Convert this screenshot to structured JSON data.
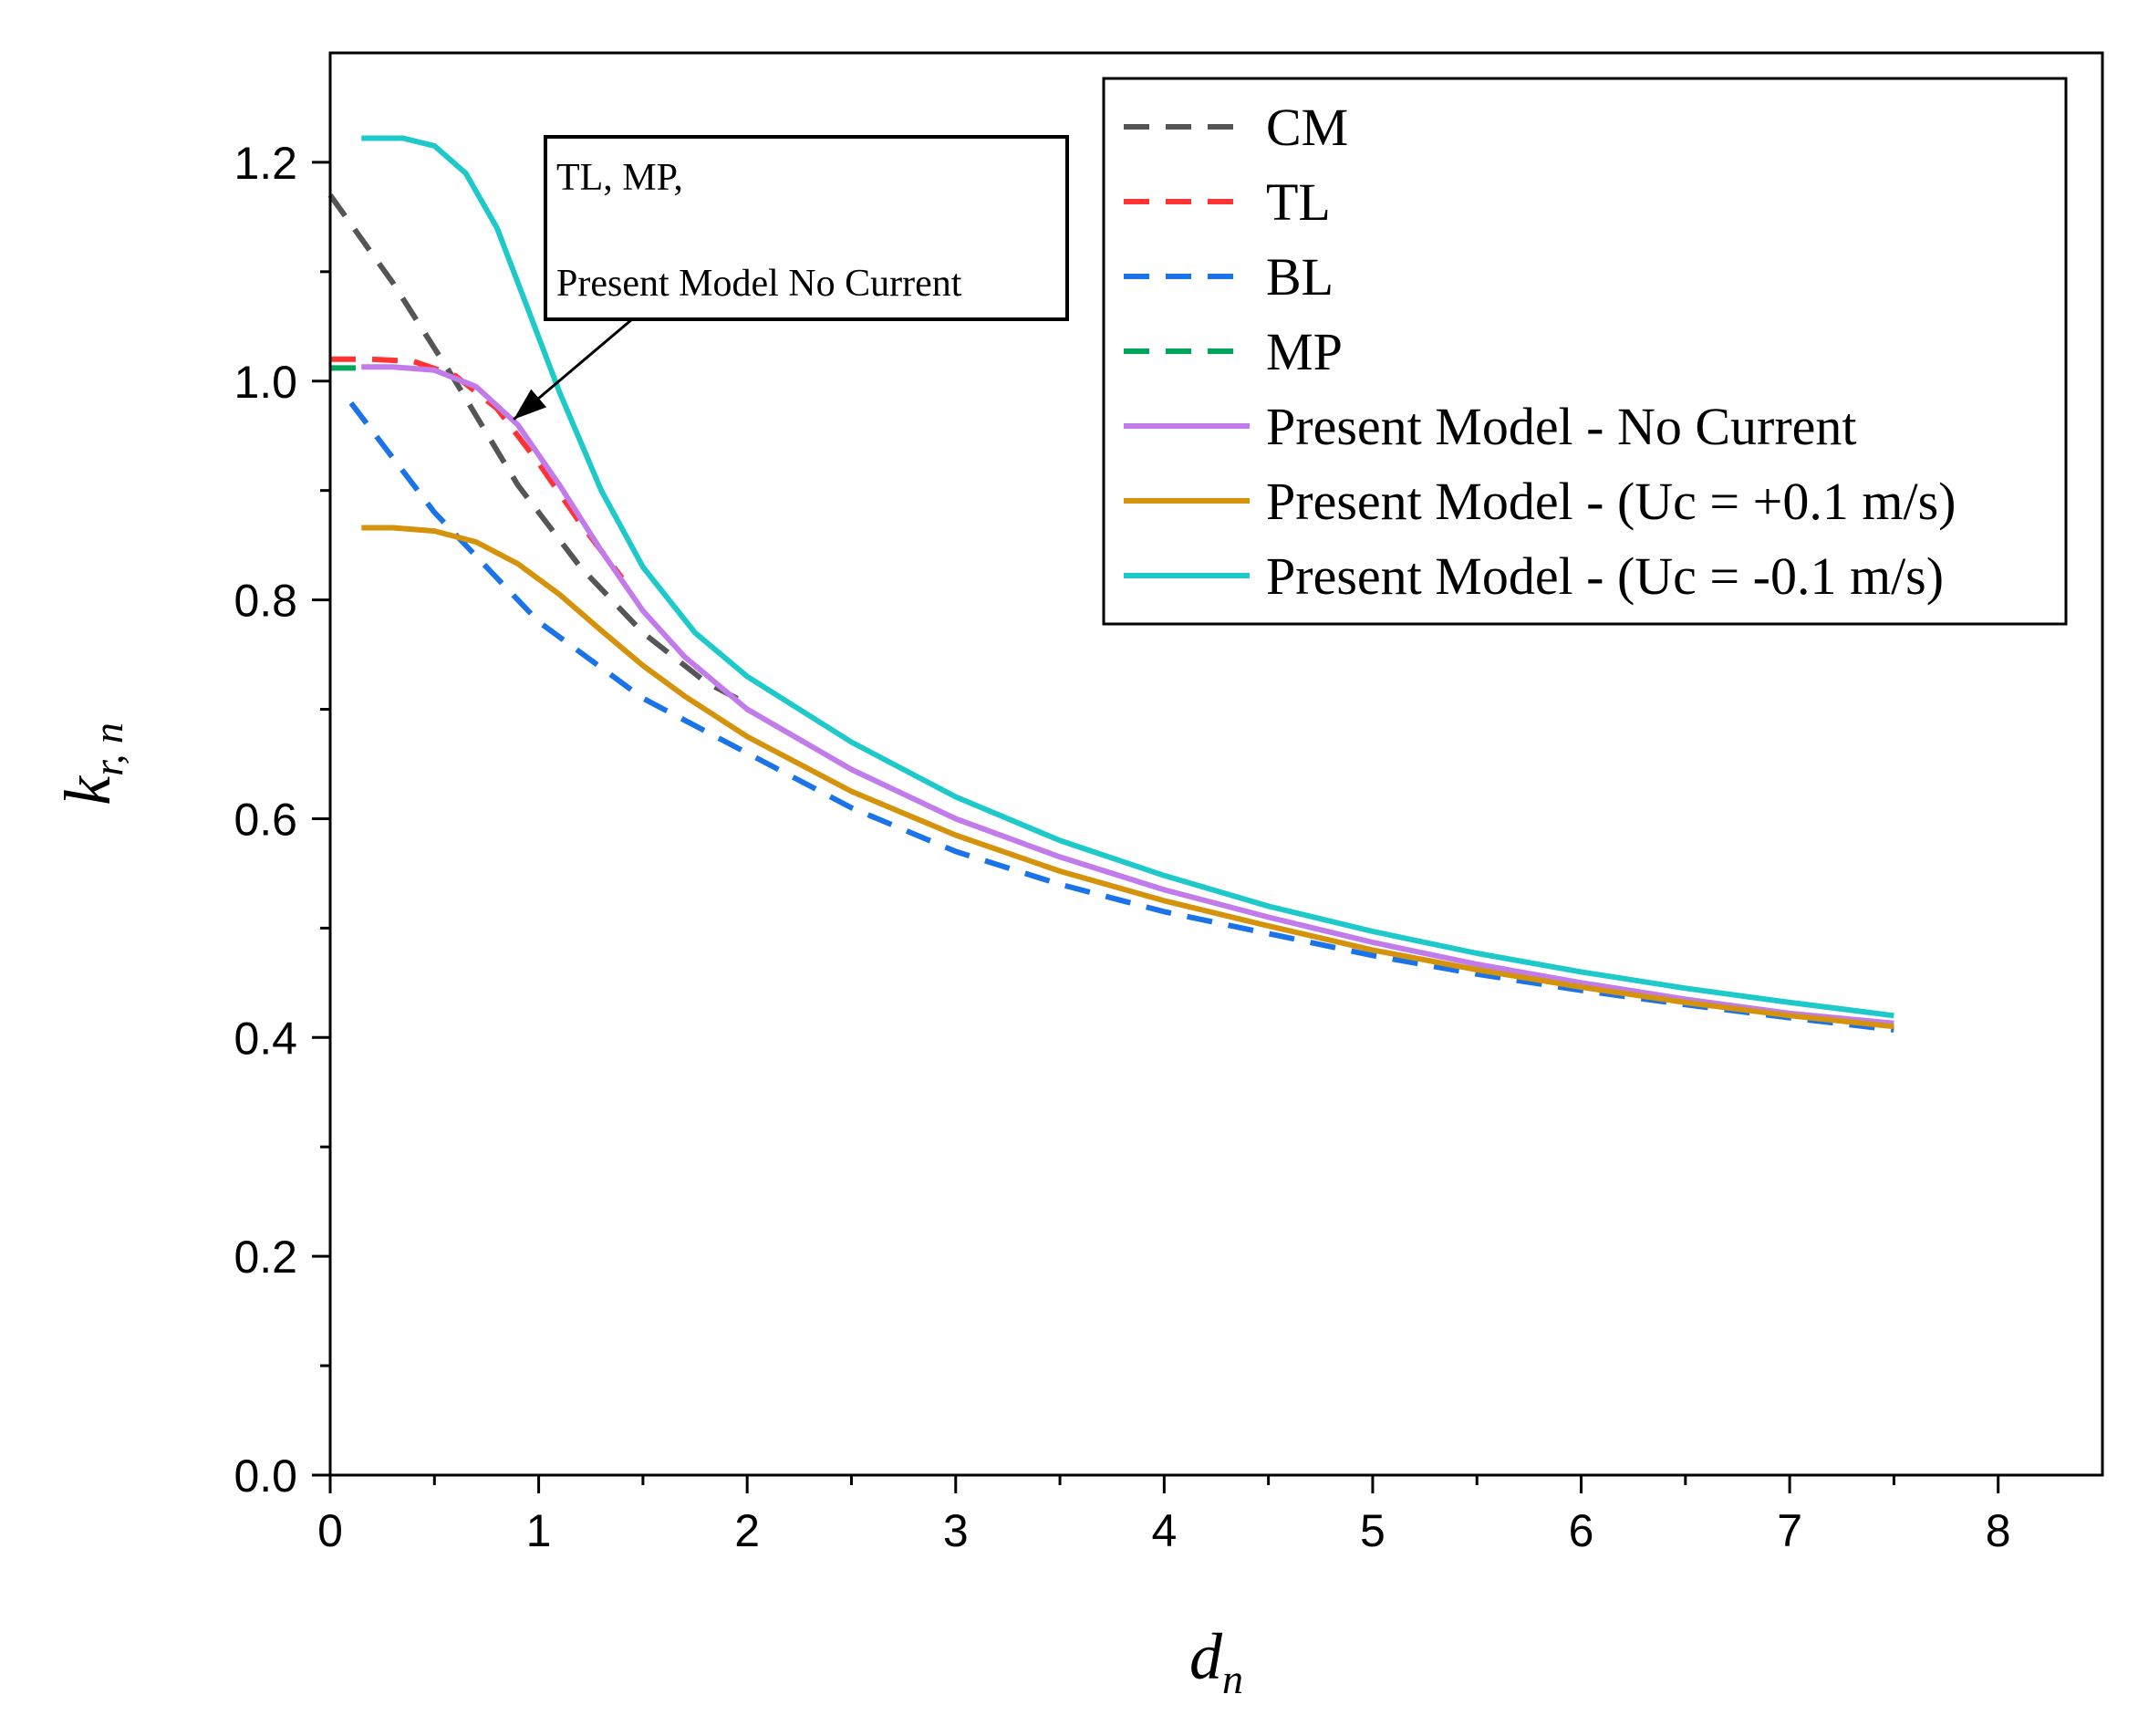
{
  "chart_data": {
    "type": "line",
    "title": "",
    "xlabel": {
      "main": "d",
      "sub": "n"
    },
    "ylabel": {
      "main": "k",
      "sub": "r, n"
    },
    "xlim": [
      0,
      8.5
    ],
    "ylim": [
      0,
      1.3
    ],
    "xticks": [
      0,
      1,
      2,
      3,
      4,
      5,
      6,
      7,
      8
    ],
    "xtick_labels": [
      "0",
      "1",
      "2",
      "3",
      "4",
      "5",
      "6",
      "7",
      "8"
    ],
    "yticks": [
      0.0,
      0.2,
      0.4,
      0.6,
      0.8,
      1.0,
      1.2
    ],
    "ytick_labels": [
      "0.0",
      "0.2",
      "0.4",
      "0.6",
      "0.8",
      "1.0",
      "1.2"
    ],
    "grid": false,
    "legend_position": "top-right",
    "annotation": {
      "lines": [
        "TL, MP,",
        "",
        "Present Model No Current"
      ],
      "arrow_target": {
        "x": 0.88,
        "y": 0.965
      }
    },
    "series": [
      {
        "name": "CM",
        "color": "#555555",
        "style": "dashed",
        "x": [
          0.0,
          0.3,
          0.6,
          0.9,
          1.2,
          1.5,
          1.8,
          2.0
        ],
        "y": [
          1.17,
          1.09,
          1.0,
          0.905,
          0.83,
          0.77,
          0.725,
          0.705
        ]
      },
      {
        "name": "TL",
        "color": "#ff3333",
        "style": "dashed",
        "x": [
          0.0,
          0.2,
          0.4,
          0.6,
          0.8,
          1.0,
          1.2,
          1.4
        ],
        "y": [
          1.02,
          1.02,
          1.018,
          1.005,
          0.975,
          0.925,
          0.87,
          0.82
        ]
      },
      {
        "name": "BL",
        "color": "#1a73e8",
        "style": "dashed",
        "x": [
          0.1,
          0.5,
          1.0,
          1.5,
          2.0,
          2.5,
          3.0,
          3.5,
          4.0,
          4.5,
          5.0,
          5.5,
          6.0,
          6.5,
          7.0,
          7.5
        ],
        "y": [
          0.98,
          0.88,
          0.78,
          0.71,
          0.66,
          0.61,
          0.57,
          0.54,
          0.515,
          0.495,
          0.475,
          0.458,
          0.443,
          0.43,
          0.418,
          0.407
        ]
      },
      {
        "name": "MP",
        "color": "#00a65a",
        "style": "dashed",
        "x": [
          0.0,
          0.1,
          0.15
        ],
        "y": [
          1.012,
          1.012,
          1.012
        ]
      },
      {
        "name": "Present Model - No Current",
        "color": "#c27bea",
        "style": "solid",
        "x": [
          0.15,
          0.3,
          0.5,
          0.7,
          0.9,
          1.1,
          1.3,
          1.5,
          1.7,
          2.0,
          2.5,
          3.0,
          3.5,
          4.0,
          4.5,
          5.0,
          5.5,
          6.0,
          6.5,
          7.0,
          7.5
        ],
        "y": [
          1.013,
          1.013,
          1.01,
          0.995,
          0.96,
          0.905,
          0.845,
          0.79,
          0.748,
          0.7,
          0.645,
          0.6,
          0.565,
          0.535,
          0.51,
          0.487,
          0.467,
          0.45,
          0.435,
          0.422,
          0.413
        ]
      },
      {
        "name": "Present Model - (Uc = +0.1 m/s)",
        "color": "#d4930a",
        "style": "solid",
        "x": [
          0.15,
          0.3,
          0.5,
          0.7,
          0.9,
          1.1,
          1.3,
          1.5,
          1.7,
          2.0,
          2.5,
          3.0,
          3.5,
          4.0,
          4.5,
          5.0,
          5.5,
          6.0,
          6.5,
          7.0,
          7.5
        ],
        "y": [
          0.866,
          0.866,
          0.863,
          0.853,
          0.833,
          0.805,
          0.772,
          0.74,
          0.712,
          0.675,
          0.625,
          0.585,
          0.552,
          0.525,
          0.502,
          0.48,
          0.462,
          0.446,
          0.432,
          0.42,
          0.41
        ]
      },
      {
        "name": "Present Model - (Uc = -0.1 m/s)",
        "color": "#1ec9c9",
        "style": "solid",
        "x": [
          0.15,
          0.35,
          0.5,
          0.65,
          0.8,
          0.95,
          1.1,
          1.3,
          1.5,
          1.75,
          2.0,
          2.5,
          3.0,
          3.5,
          4.0,
          4.5,
          5.0,
          5.5,
          6.0,
          6.5,
          7.0,
          7.5
        ],
        "y": [
          1.222,
          1.222,
          1.215,
          1.19,
          1.14,
          1.065,
          0.99,
          0.9,
          0.83,
          0.77,
          0.73,
          0.67,
          0.62,
          0.58,
          0.548,
          0.52,
          0.497,
          0.477,
          0.46,
          0.445,
          0.432,
          0.42
        ]
      }
    ]
  }
}
